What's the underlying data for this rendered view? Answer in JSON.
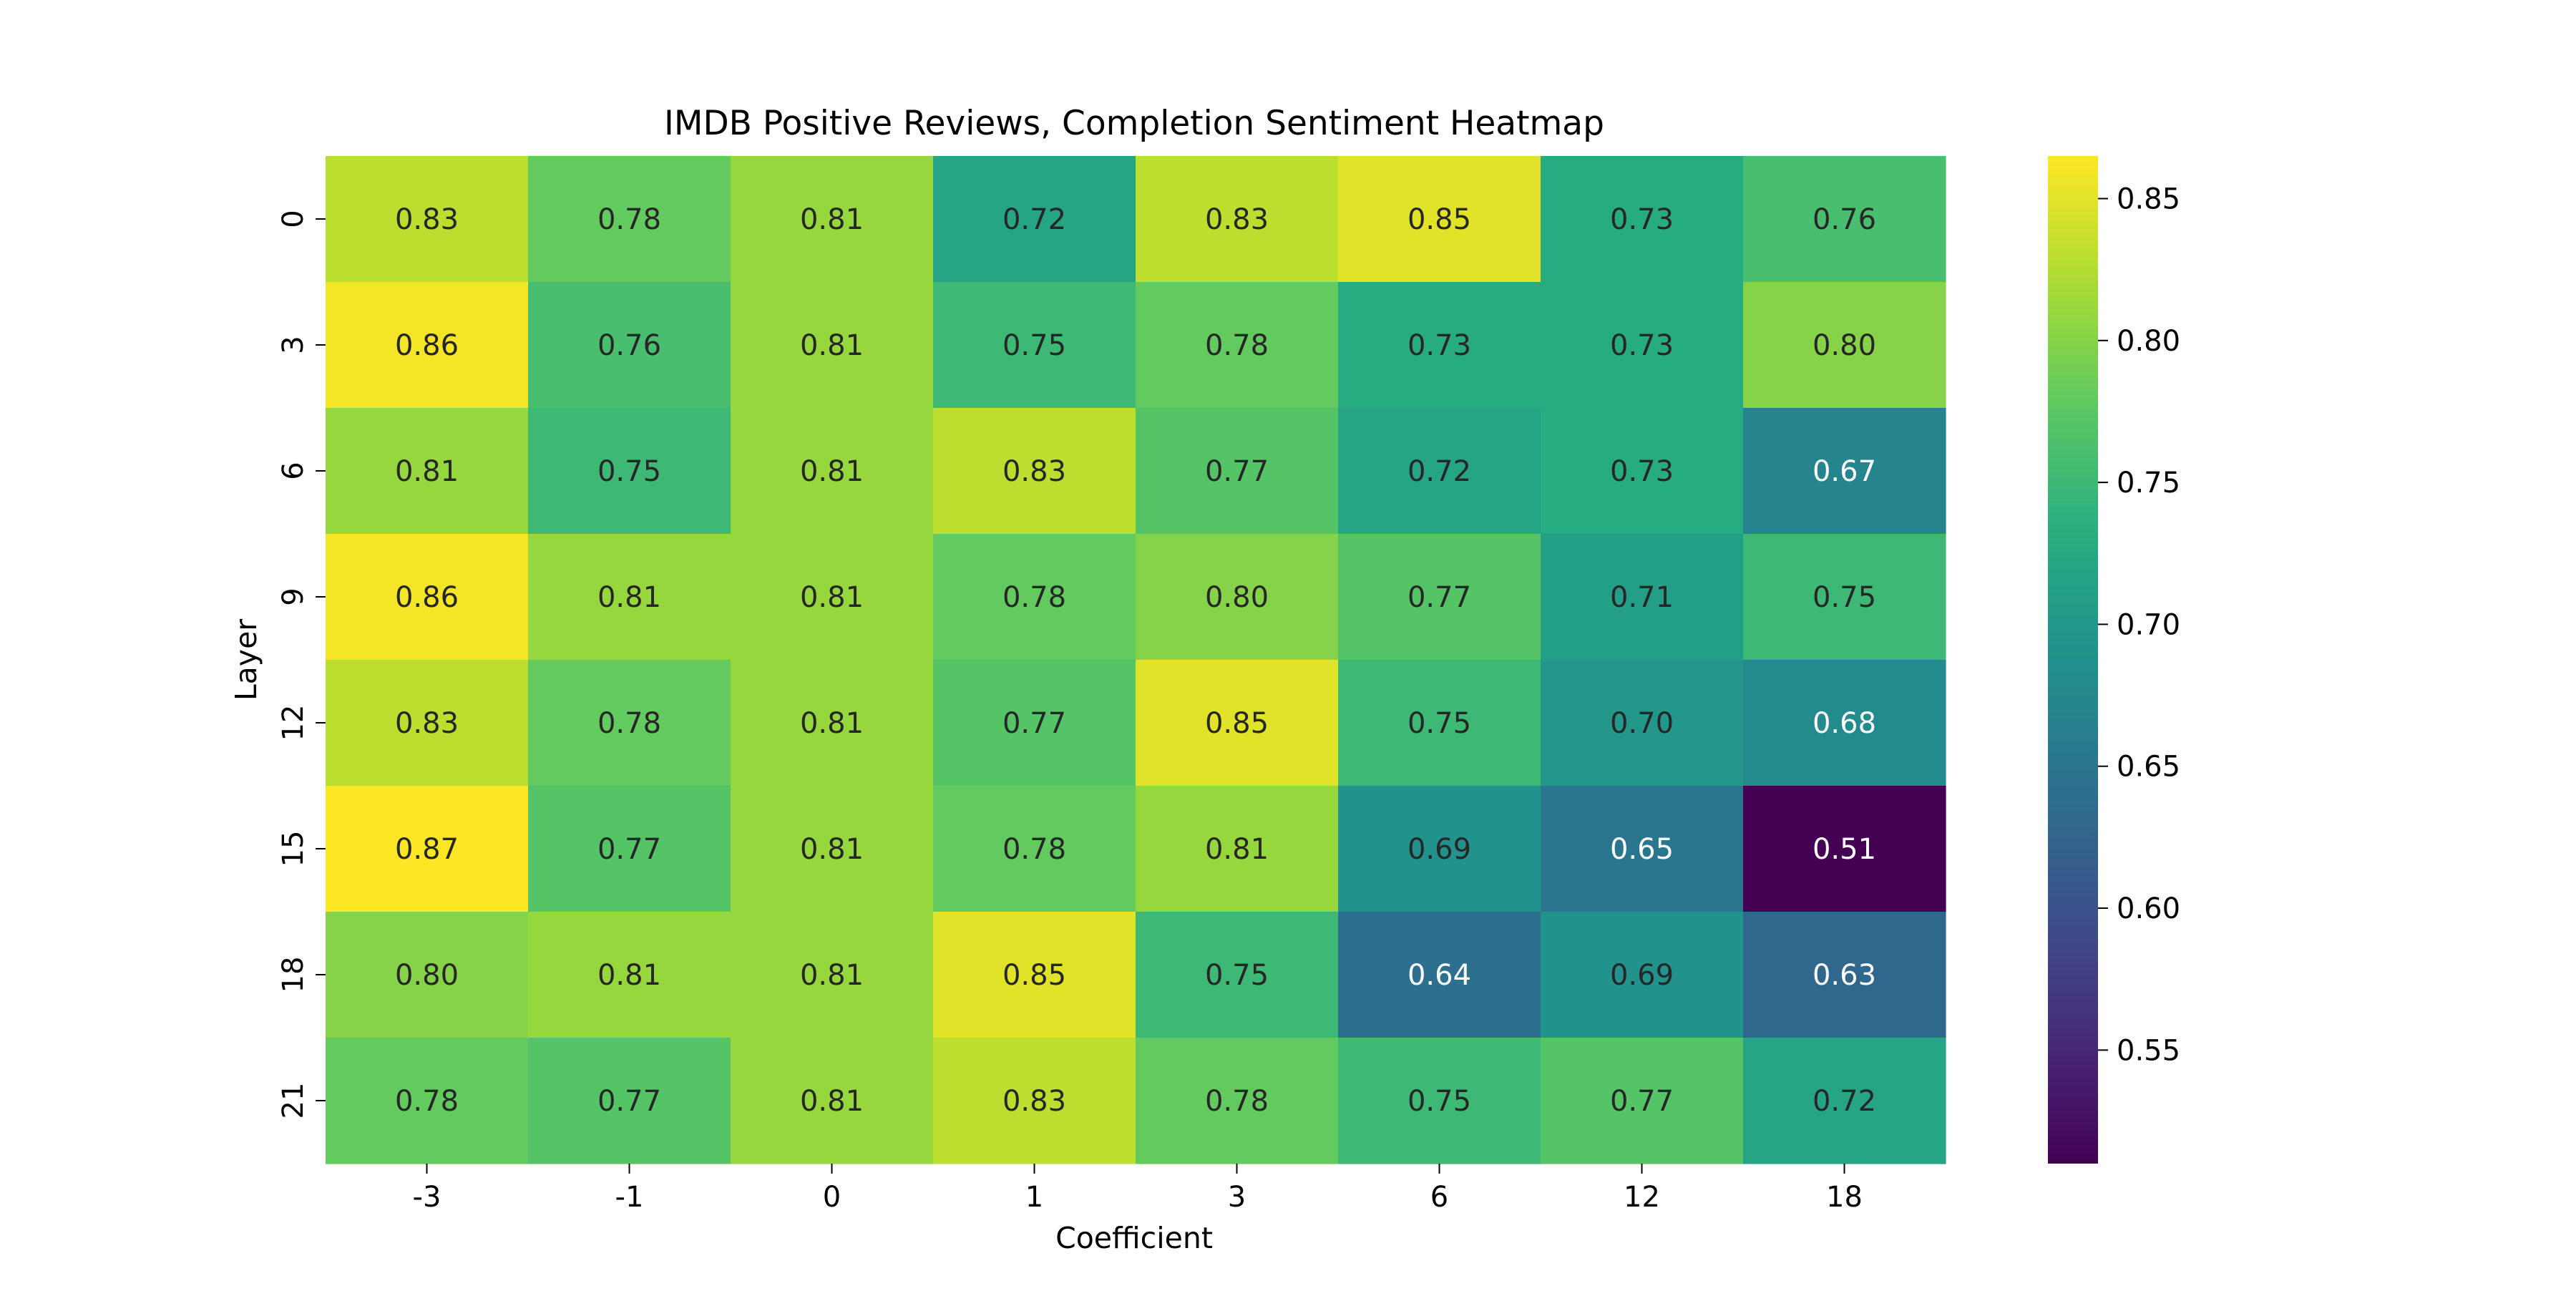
{
  "chart_data": {
    "type": "heatmap",
    "title": "IMDB Positive Reviews, Completion Sentiment Heatmap",
    "xlabel": "Coefficient",
    "ylabel": "Layer",
    "x_categories": [
      "-3",
      "-1",
      "0",
      "1",
      "3",
      "6",
      "12",
      "18"
    ],
    "y_categories": [
      "0",
      "3",
      "6",
      "9",
      "12",
      "15",
      "18",
      "21"
    ],
    "values": [
      [
        0.83,
        0.78,
        0.81,
        0.72,
        0.83,
        0.85,
        0.73,
        0.76
      ],
      [
        0.86,
        0.76,
        0.81,
        0.75,
        0.78,
        0.73,
        0.73,
        0.8
      ],
      [
        0.81,
        0.75,
        0.81,
        0.83,
        0.77,
        0.72,
        0.73,
        0.67
      ],
      [
        0.86,
        0.81,
        0.81,
        0.78,
        0.8,
        0.77,
        0.71,
        0.75
      ],
      [
        0.83,
        0.78,
        0.81,
        0.77,
        0.85,
        0.75,
        0.7,
        0.68
      ],
      [
        0.87,
        0.77,
        0.81,
        0.78,
        0.81,
        0.69,
        0.65,
        0.51
      ],
      [
        0.8,
        0.81,
        0.81,
        0.85,
        0.75,
        0.64,
        0.69,
        0.63
      ],
      [
        0.78,
        0.77,
        0.81,
        0.83,
        0.78,
        0.75,
        0.77,
        0.72
      ]
    ],
    "colormap": "viridis",
    "vmin": 0.51,
    "vmax": 0.865,
    "colorbar_ticks": [
      "0.55",
      "0.60",
      "0.65",
      "0.70",
      "0.75",
      "0.80",
      "0.85"
    ],
    "annotations": true,
    "grid": false,
    "legend": "colorbar-right"
  }
}
